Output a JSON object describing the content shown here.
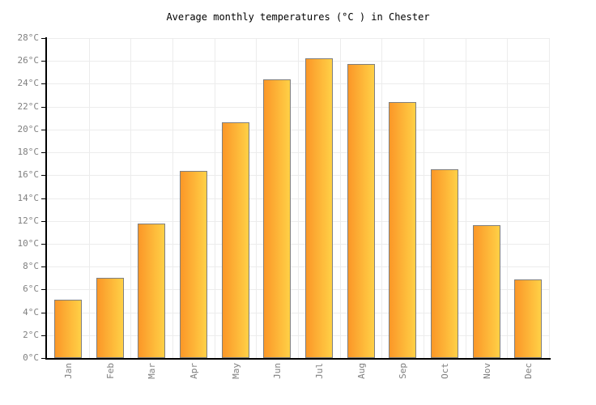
{
  "window": {
    "background": "#FFFFFF"
  },
  "chart_data": {
    "type": "bar",
    "title": "Average monthly temperatures (°C ) in Chester",
    "categories": [
      "Jan",
      "Feb",
      "Mar",
      "Apr",
      "May",
      "Jun",
      "Jul",
      "Aug",
      "Sep",
      "Oct",
      "Nov",
      "Dec"
    ],
    "values": [
      5.1,
      7,
      11.8,
      16.4,
      20.6,
      24.4,
      26.2,
      25.7,
      22.4,
      16.5,
      11.6,
      6.9
    ],
    "unit": "°C",
    "xlabel": "",
    "ylabel": "",
    "ylim": [
      0,
      28
    ],
    "ytick_step": 2,
    "grid": true,
    "legend_position": "none",
    "colors": {
      "bar_gradient_left": "#FB9728",
      "bar_gradient_right": "#FFD046",
      "bar_border": "#7F7F7F",
      "gridline": "#ECECEC",
      "axis": "#000000",
      "tick_label": "#808080",
      "title": "#000000",
      "background": "#FFFFFF"
    }
  }
}
